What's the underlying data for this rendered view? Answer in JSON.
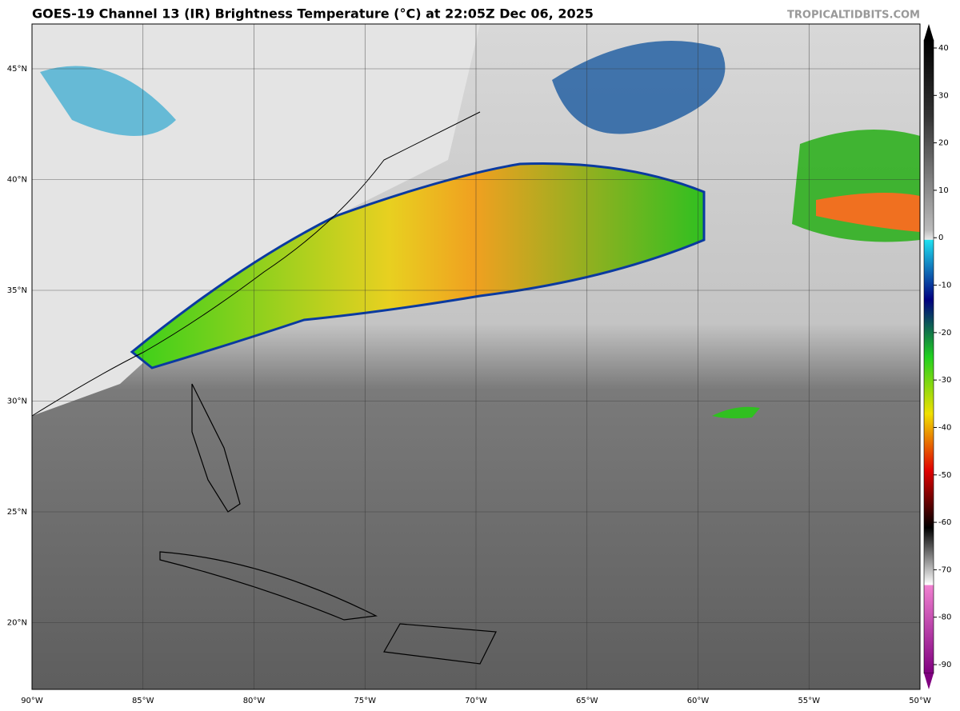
{
  "header": {
    "title": "GOES-19 Channel 13 (IR) Brightness Temperature (°C) at 22:05Z Dec 06, 2025",
    "credit": "TROPICALTIDBITS.COM"
  },
  "map": {
    "lat_labels": [
      "45°N",
      "40°N",
      "35°N",
      "30°N",
      "25°N",
      "20°N"
    ],
    "lon_labels": [
      "90°W",
      "85°W",
      "80°W",
      "75°W",
      "70°W",
      "65°W",
      "60°W",
      "55°W",
      "50°W"
    ]
  },
  "colorbar": {
    "ticks": [
      40,
      30,
      20,
      10,
      0,
      -10,
      -20,
      -30,
      -40,
      -50,
      -60,
      -70,
      -80,
      -90
    ]
  }
}
